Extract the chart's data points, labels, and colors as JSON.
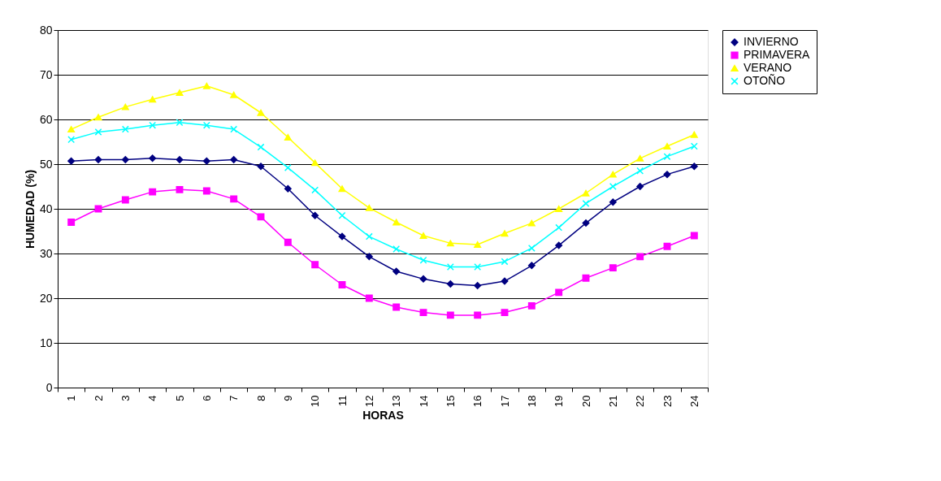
{
  "chart_data": {
    "type": "line",
    "xlabel": "HORAS",
    "ylabel": "HUMEDAD (%)",
    "categories": [
      "1",
      "2",
      "3",
      "4",
      "5",
      "6",
      "7",
      "8",
      "9",
      "10",
      "11",
      "12",
      "13",
      "14",
      "15",
      "16",
      "17",
      "18",
      "19",
      "20",
      "21",
      "22",
      "23",
      "24"
    ],
    "series": [
      {
        "name": "INVIERNO",
        "color": "#000080",
        "marker": "diamond",
        "values": [
          50.7,
          51,
          51,
          51.3,
          51,
          50.7,
          51,
          49.5,
          44.5,
          38.5,
          33.8,
          29.3,
          26,
          24.3,
          23.2,
          22.8,
          23.8,
          27.3,
          31.8,
          36.8,
          41.5,
          45,
          47.7,
          49.5
        ]
      },
      {
        "name": "PRIMAVERA",
        "color": "#ff00ff",
        "marker": "square",
        "values": [
          37,
          40,
          42,
          43.8,
          44.3,
          44,
          42.2,
          38.2,
          32.5,
          27.5,
          23,
          20,
          18,
          16.8,
          16.2,
          16.2,
          16.8,
          18.3,
          21.3,
          24.5,
          26.8,
          29.3,
          31.6,
          34
        ]
      },
      {
        "name": "VERANO",
        "color": "#ffff00",
        "marker": "triangle",
        "values": [
          57.8,
          60.5,
          62.8,
          64.5,
          66,
          67.5,
          65.5,
          61.5,
          56,
          50.3,
          44.5,
          40.2,
          37,
          34,
          32.3,
          32,
          34.5,
          36.8,
          40,
          43.5,
          47.7,
          51.3,
          54,
          56.6
        ]
      },
      {
        "name": "OTOÑO",
        "color": "#00ffff",
        "marker": "cross",
        "values": [
          55.5,
          57.2,
          57.8,
          58.7,
          59.3,
          58.7,
          57.8,
          53.8,
          49.2,
          44.2,
          38.5,
          33.8,
          31,
          28.5,
          27,
          27,
          28.2,
          31.2,
          35.8,
          41.2,
          45,
          48.5,
          51.7,
          54
        ]
      }
    ],
    "ylim": [
      0,
      80
    ],
    "yticks": [
      0,
      10,
      20,
      30,
      40,
      50,
      60,
      70,
      80
    ],
    "grid": "y",
    "legend": "right",
    "line_style": "solid"
  }
}
